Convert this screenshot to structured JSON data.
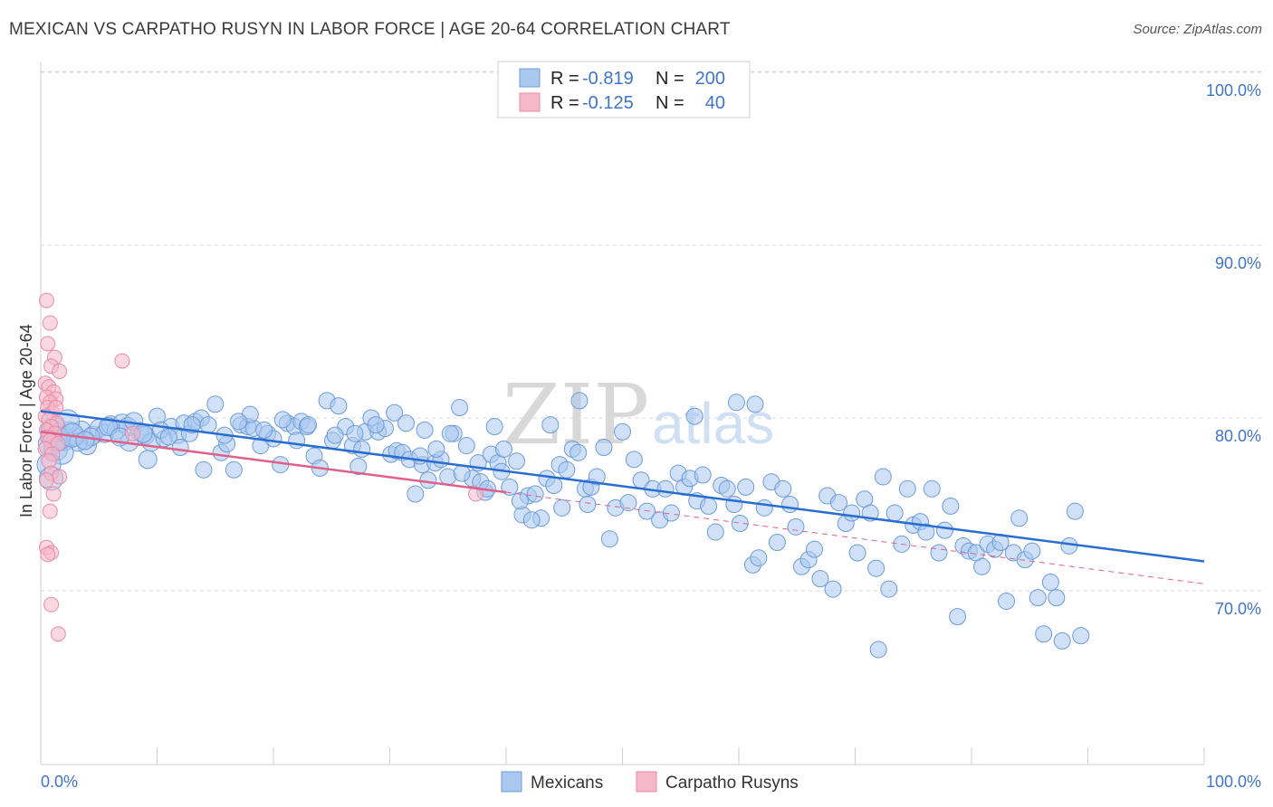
{
  "header": {
    "title": "MEXICAN VS CARPATHO RUSYN IN LABOR FORCE | AGE 20-64 CORRELATION CHART",
    "source": "Source: ZipAtlas.com"
  },
  "watermark": {
    "zip": "ZIP",
    "atlas": "atlas"
  },
  "legend_top": {
    "rows": [
      {
        "r_label": "R =",
        "r_value": "-0.819",
        "n_label": "N =",
        "n_value": "200",
        "color": "#a9c8f0"
      },
      {
        "r_label": "R =",
        "r_value": "-0.125",
        "n_label": "N =",
        "n_value": "40",
        "color": "#f5b8c9"
      }
    ]
  },
  "legend_bottom": {
    "items": [
      {
        "label": "Mexicans",
        "color": "#a9c8f0"
      },
      {
        "label": "Carpatho Rusyns",
        "color": "#f5b8c9"
      }
    ]
  },
  "colors": {
    "blue_fill": "#a9c8f0",
    "blue_stroke": "#6c9bd9",
    "blue_line": "#2a6dd1",
    "pink_fill": "#f5b8c9",
    "pink_stroke": "#e98aa7",
    "pink_line": "#e0608a",
    "tick_text": "#3f74c8",
    "grid": "#d8d8d8"
  },
  "chart_data": {
    "type": "scatter",
    "title": "MEXICAN VS CARPATHO RUSYN IN LABOR FORCE | AGE 20-64 CORRELATION CHART",
    "xlabel": "",
    "ylabel": "In Labor Force | Age 20-64",
    "xlim": [
      0,
      100
    ],
    "ylim": [
      60,
      102
    ],
    "y_ticks": [
      70,
      80,
      90,
      100
    ],
    "y_tick_labels": [
      "70.0%",
      "80.0%",
      "90.0%",
      "100.0%"
    ],
    "x_tick_labels": [
      "0.0%",
      "100.0%"
    ],
    "grid": true,
    "legend_position": "top-center",
    "series": [
      {
        "name": "Mexicans",
        "r": -0.819,
        "n": 200,
        "trend": {
          "x": [
            0,
            100
          ],
          "y": [
            80.4,
            71.7
          ]
        },
        "points": [
          [
            0.8,
            78.5
          ],
          [
            1.0,
            79.2
          ],
          [
            1.3,
            78.2
          ],
          [
            1.6,
            79.0
          ],
          [
            2.0,
            78.8
          ],
          [
            2.5,
            79.1
          ],
          [
            3.0,
            78.9
          ],
          [
            3.5,
            79.3
          ],
          [
            4.0,
            78.4
          ],
          [
            4.5,
            79.0
          ],
          [
            5.0,
            79.4
          ],
          [
            5.5,
            79.1
          ],
          [
            6.0,
            79.6
          ],
          [
            6.5,
            79.3
          ],
          [
            7.0,
            79.7
          ],
          [
            7.5,
            79.5
          ],
          [
            8.0,
            79.8
          ],
          [
            8.5,
            79.2
          ],
          [
            9.0,
            79.0
          ],
          [
            9.5,
            78.6
          ],
          [
            10.0,
            80.1
          ],
          [
            10.6,
            78.8
          ],
          [
            11.2,
            79.5
          ],
          [
            11.8,
            79.0
          ],
          [
            12.3,
            79.7
          ],
          [
            12.8,
            79.1
          ],
          [
            13.3,
            79.8
          ],
          [
            13.8,
            80.0
          ],
          [
            14.4,
            79.6
          ],
          [
            15.0,
            80.8
          ],
          [
            15.5,
            78.0
          ],
          [
            16.0,
            78.5
          ],
          [
            16.6,
            77.0
          ],
          [
            17.2,
            79.6
          ],
          [
            17.8,
            79.5
          ],
          [
            18.3,
            79.4
          ],
          [
            18.9,
            78.4
          ],
          [
            19.5,
            79.1
          ],
          [
            20.0,
            78.8
          ],
          [
            20.6,
            77.3
          ],
          [
            21.2,
            79.7
          ],
          [
            21.8,
            79.5
          ],
          [
            22.4,
            79.8
          ],
          [
            22.9,
            79.5
          ],
          [
            23.5,
            77.8
          ],
          [
            24.0,
            77.1
          ],
          [
            24.6,
            81.0
          ],
          [
            25.1,
            78.7
          ],
          [
            25.6,
            80.7
          ],
          [
            26.2,
            79.5
          ],
          [
            26.8,
            78.4
          ],
          [
            27.3,
            77.2
          ],
          [
            27.9,
            79.2
          ],
          [
            28.4,
            80.0
          ],
          [
            29.0,
            79.2
          ],
          [
            29.6,
            79.4
          ],
          [
            30.1,
            77.9
          ],
          [
            30.6,
            78.1
          ],
          [
            31.1,
            78.0
          ],
          [
            31.7,
            77.6
          ],
          [
            32.2,
            75.6
          ],
          [
            32.8,
            77.3
          ],
          [
            33.3,
            76.4
          ],
          [
            33.9,
            77.4
          ],
          [
            34.4,
            77.6
          ],
          [
            35.0,
            76.6
          ],
          [
            35.5,
            79.1
          ],
          [
            36.0,
            80.6
          ],
          [
            36.6,
            78.4
          ],
          [
            37.1,
            76.5
          ],
          [
            37.6,
            77.4
          ],
          [
            38.2,
            75.7
          ],
          [
            38.7,
            77.9
          ],
          [
            39.3,
            77.4
          ],
          [
            39.8,
            78.2
          ],
          [
            40.3,
            76.0
          ],
          [
            40.9,
            77.5
          ],
          [
            41.4,
            74.4
          ],
          [
            41.9,
            75.5
          ],
          [
            42.5,
            75.6
          ],
          [
            43.0,
            74.2
          ],
          [
            43.5,
            76.5
          ],
          [
            44.1,
            76.1
          ],
          [
            44.6,
            77.3
          ],
          [
            45.2,
            77.0
          ],
          [
            45.7,
            78.2
          ],
          [
            46.2,
            78.0
          ],
          [
            46.8,
            75.9
          ],
          [
            47.3,
            76.0
          ],
          [
            47.8,
            76.6
          ],
          [
            48.4,
            78.3
          ],
          [
            48.9,
            73.0
          ],
          [
            49.4,
            74.8
          ],
          [
            50.0,
            79.2
          ],
          [
            50.5,
            75.1
          ],
          [
            51.0,
            77.6
          ],
          [
            51.6,
            76.4
          ],
          [
            52.1,
            74.6
          ],
          [
            52.6,
            75.9
          ],
          [
            53.2,
            74.1
          ],
          [
            53.7,
            75.9
          ],
          [
            54.2,
            74.5
          ],
          [
            54.8,
            76.8
          ],
          [
            55.3,
            76.0
          ],
          [
            55.8,
            76.5
          ],
          [
            56.4,
            75.2
          ],
          [
            56.9,
            76.7
          ],
          [
            57.4,
            74.9
          ],
          [
            58.0,
            73.4
          ],
          [
            58.5,
            76.1
          ],
          [
            59.0,
            75.9
          ],
          [
            59.6,
            75.0
          ],
          [
            60.1,
            73.9
          ],
          [
            60.6,
            76.0
          ],
          [
            61.2,
            71.5
          ],
          [
            61.7,
            71.9
          ],
          [
            62.2,
            74.8
          ],
          [
            62.8,
            76.3
          ],
          [
            63.3,
            72.8
          ],
          [
            63.8,
            75.9
          ],
          [
            64.4,
            75.0
          ],
          [
            64.9,
            73.7
          ],
          [
            65.4,
            71.4
          ],
          [
            66.0,
            71.8
          ],
          [
            66.5,
            72.4
          ],
          [
            67.0,
            70.7
          ],
          [
            67.6,
            75.5
          ],
          [
            68.1,
            70.1
          ],
          [
            68.6,
            75.1
          ],
          [
            69.2,
            73.9
          ],
          [
            69.7,
            74.5
          ],
          [
            70.2,
            72.2
          ],
          [
            70.8,
            75.3
          ],
          [
            71.3,
            74.5
          ],
          [
            71.8,
            71.3
          ],
          [
            72.4,
            76.6
          ],
          [
            72.9,
            70.1
          ],
          [
            73.4,
            74.5
          ],
          [
            74.0,
            72.7
          ],
          [
            74.5,
            75.9
          ],
          [
            75.0,
            73.8
          ],
          [
            75.6,
            74.0
          ],
          [
            76.1,
            73.4
          ],
          [
            76.6,
            75.9
          ],
          [
            77.2,
            72.2
          ],
          [
            77.7,
            73.5
          ],
          [
            78.2,
            74.9
          ],
          [
            78.8,
            68.5
          ],
          [
            79.3,
            72.6
          ],
          [
            79.8,
            72.3
          ],
          [
            80.4,
            72.2
          ],
          [
            80.9,
            71.4
          ],
          [
            81.4,
            72.7
          ],
          [
            82.0,
            72.4
          ],
          [
            82.5,
            72.8
          ],
          [
            83.0,
            69.4
          ],
          [
            83.6,
            72.2
          ],
          [
            84.1,
            74.2
          ],
          [
            84.6,
            71.8
          ],
          [
            85.2,
            72.3
          ],
          [
            85.7,
            69.6
          ],
          [
            86.2,
            67.5
          ],
          [
            86.8,
            70.5
          ],
          [
            87.3,
            69.6
          ],
          [
            87.8,
            67.1
          ],
          [
            88.4,
            72.6
          ],
          [
            88.9,
            74.6
          ],
          [
            89.4,
            67.4
          ],
          [
            72.0,
            66.6
          ],
          [
            61.4,
            80.8
          ],
          [
            59.8,
            80.9
          ],
          [
            56.2,
            80.1
          ],
          [
            46.3,
            81.0
          ],
          [
            43.8,
            79.6
          ],
          [
            39.0,
            79.5
          ],
          [
            35.2,
            79.1
          ],
          [
            33.0,
            79.3
          ],
          [
            27.6,
            78.2
          ],
          [
            22.0,
            78.7
          ],
          [
            18.0,
            80.2
          ],
          [
            14.0,
            77.0
          ],
          [
            12.0,
            78.3
          ],
          [
            9.2,
            77.6
          ],
          [
            7.6,
            78.6
          ],
          [
            5.8,
            79.5
          ],
          [
            4.3,
            78.9
          ],
          [
            3.2,
            78.6
          ],
          [
            2.3,
            79.8
          ],
          [
            1.8,
            78.0
          ],
          [
            1.1,
            79.4
          ],
          [
            0.7,
            77.3
          ],
          [
            0.9,
            76.5
          ],
          [
            1.5,
            78.8
          ],
          [
            2.7,
            79.0
          ],
          [
            3.8,
            78.7
          ],
          [
            6.8,
            78.9
          ],
          [
            8.8,
            79.1
          ],
          [
            10.3,
            79.3
          ],
          [
            11.0,
            78.9
          ],
          [
            13.0,
            79.6
          ],
          [
            15.8,
            79.0
          ],
          [
            17.0,
            79.8
          ],
          [
            19.2,
            79.3
          ],
          [
            20.8,
            79.9
          ],
          [
            23.0,
            79.6
          ],
          [
            25.3,
            79.0
          ],
          [
            27.0,
            79.1
          ],
          [
            28.8,
            79.6
          ],
          [
            30.4,
            80.3
          ],
          [
            31.4,
            79.7
          ],
          [
            32.6,
            77.8
          ],
          [
            34.0,
            78.2
          ],
          [
            36.2,
            76.8
          ],
          [
            37.8,
            76.3
          ],
          [
            38.4,
            75.9
          ],
          [
            39.6,
            76.9
          ],
          [
            41.2,
            75.2
          ],
          [
            42.2,
            74.1
          ],
          [
            44.8,
            74.8
          ],
          [
            47.0,
            75.0
          ]
        ]
      },
      {
        "name": "Carpatho Rusyns",
        "r": -0.125,
        "n": 40,
        "trend": {
          "x": [
            0,
            40
          ],
          "y": [
            79.2,
            75.7
          ]
        },
        "trend_extended": {
          "x": [
            40,
            100
          ],
          "y": [
            75.7,
            70.4
          ]
        },
        "points": [
          [
            0.5,
            86.8
          ],
          [
            0.8,
            85.5
          ],
          [
            0.6,
            84.3
          ],
          [
            1.2,
            83.5
          ],
          [
            0.9,
            83.0
          ],
          [
            1.6,
            82.7
          ],
          [
            0.4,
            82.0
          ],
          [
            0.7,
            81.8
          ],
          [
            1.1,
            81.5
          ],
          [
            0.5,
            81.2
          ],
          [
            1.3,
            81.1
          ],
          [
            0.8,
            80.9
          ],
          [
            0.6,
            80.6
          ],
          [
            1.0,
            80.3
          ],
          [
            0.4,
            80.1
          ],
          [
            0.7,
            79.9
          ],
          [
            1.4,
            79.7
          ],
          [
            0.9,
            79.5
          ],
          [
            0.5,
            79.3
          ],
          [
            1.2,
            79.1
          ],
          [
            0.6,
            78.9
          ],
          [
            0.8,
            78.7
          ],
          [
            1.5,
            78.5
          ],
          [
            0.4,
            78.2
          ],
          [
            1.0,
            77.9
          ],
          [
            0.7,
            77.5
          ],
          [
            0.9,
            76.8
          ],
          [
            1.6,
            76.6
          ],
          [
            0.5,
            76.4
          ],
          [
            1.1,
            75.6
          ],
          [
            0.8,
            74.6
          ],
          [
            0.5,
            72.5
          ],
          [
            0.9,
            72.2
          ],
          [
            0.6,
            72.1
          ],
          [
            0.9,
            69.2
          ],
          [
            1.5,
            67.5
          ],
          [
            7.0,
            83.3
          ],
          [
            7.9,
            79.1
          ],
          [
            37.4,
            75.6
          ],
          [
            1.3,
            80.6
          ]
        ]
      }
    ]
  }
}
